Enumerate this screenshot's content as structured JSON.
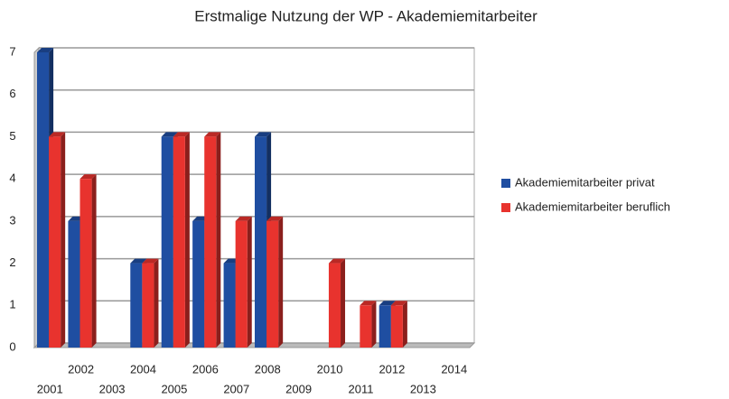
{
  "chart_data": {
    "type": "bar",
    "title": "Erstmalige Nutzung der WP - Akademiemitarbeiter",
    "categories": [
      "2001",
      "2002",
      "2003",
      "2004",
      "2005",
      "2006",
      "2007",
      "2008",
      "2009",
      "2010",
      "2011",
      "2012",
      "2013",
      "2014"
    ],
    "series": [
      {
        "name": "Akademiemitarbeiter privat",
        "color": "#1f4ea1",
        "values": [
          7,
          3,
          0,
          2,
          5,
          3,
          2,
          5,
          0,
          0,
          0,
          1,
          0,
          0
        ]
      },
      {
        "name": "Akademiemitarbeiter beruflich",
        "color": "#e8332e",
        "values": [
          5,
          4,
          0,
          2,
          5,
          5,
          3,
          3,
          0,
          2,
          1,
          1,
          0,
          0
        ]
      }
    ],
    "ylim": [
      0,
      7
    ],
    "yticks": [
      0,
      1,
      2,
      3,
      4,
      5,
      6,
      7
    ],
    "grid": true,
    "legend": "right"
  }
}
